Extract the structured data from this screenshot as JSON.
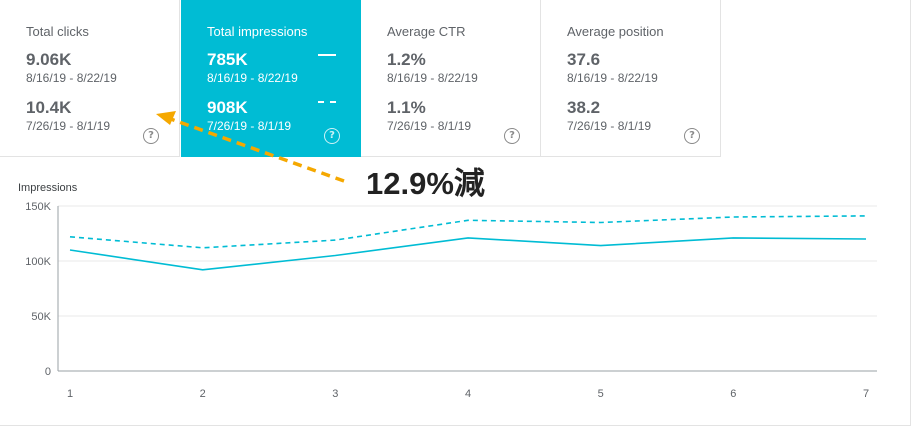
{
  "metrics": [
    {
      "title": "Total clicks",
      "current_value": "9.06K",
      "current_range": "8/16/19 - 8/22/19",
      "previous_value": "10.4K",
      "previous_range": "7/26/19 - 8/1/19",
      "help": "?"
    },
    {
      "title": "Total impressions",
      "current_value": "785K",
      "current_range": "8/16/19 - 8/22/19",
      "previous_value": "908K",
      "previous_range": "7/26/19 - 8/1/19",
      "help": "?",
      "active": true
    },
    {
      "title": "Average CTR",
      "current_value": "1.2%",
      "current_range": "8/16/19 - 8/22/19",
      "previous_value": "1.1%",
      "previous_range": "7/26/19 - 8/1/19",
      "help": "?"
    },
    {
      "title": "Average position",
      "current_value": "37.6",
      "current_range": "8/16/19 - 8/22/19",
      "previous_value": "38.2",
      "previous_range": "7/26/19 - 8/1/19",
      "help": "?"
    }
  ],
  "annotation": {
    "text": "12.9%減",
    "arrow_color": "#f5a800"
  },
  "colors": {
    "accent": "#00bcd4",
    "grid": "#e8e8e8",
    "axis": "#9aa0a6"
  },
  "chart_data": {
    "type": "line",
    "title": "Impressions",
    "x": [
      "1",
      "2",
      "3",
      "4",
      "5",
      "6",
      "7"
    ],
    "y_ticks": [
      "0",
      "50K",
      "100K",
      "150K"
    ],
    "ylim": [
      0,
      150000
    ],
    "grid": true,
    "series": [
      {
        "style": "solid",
        "color": "#00bcd4",
        "values": [
          110000,
          92000,
          105000,
          121000,
          114000,
          121000,
          120000
        ]
      },
      {
        "style": "dashed",
        "color": "#00bcd4",
        "values": [
          122000,
          112000,
          119000,
          137000,
          135000,
          140000,
          141000
        ]
      }
    ]
  }
}
